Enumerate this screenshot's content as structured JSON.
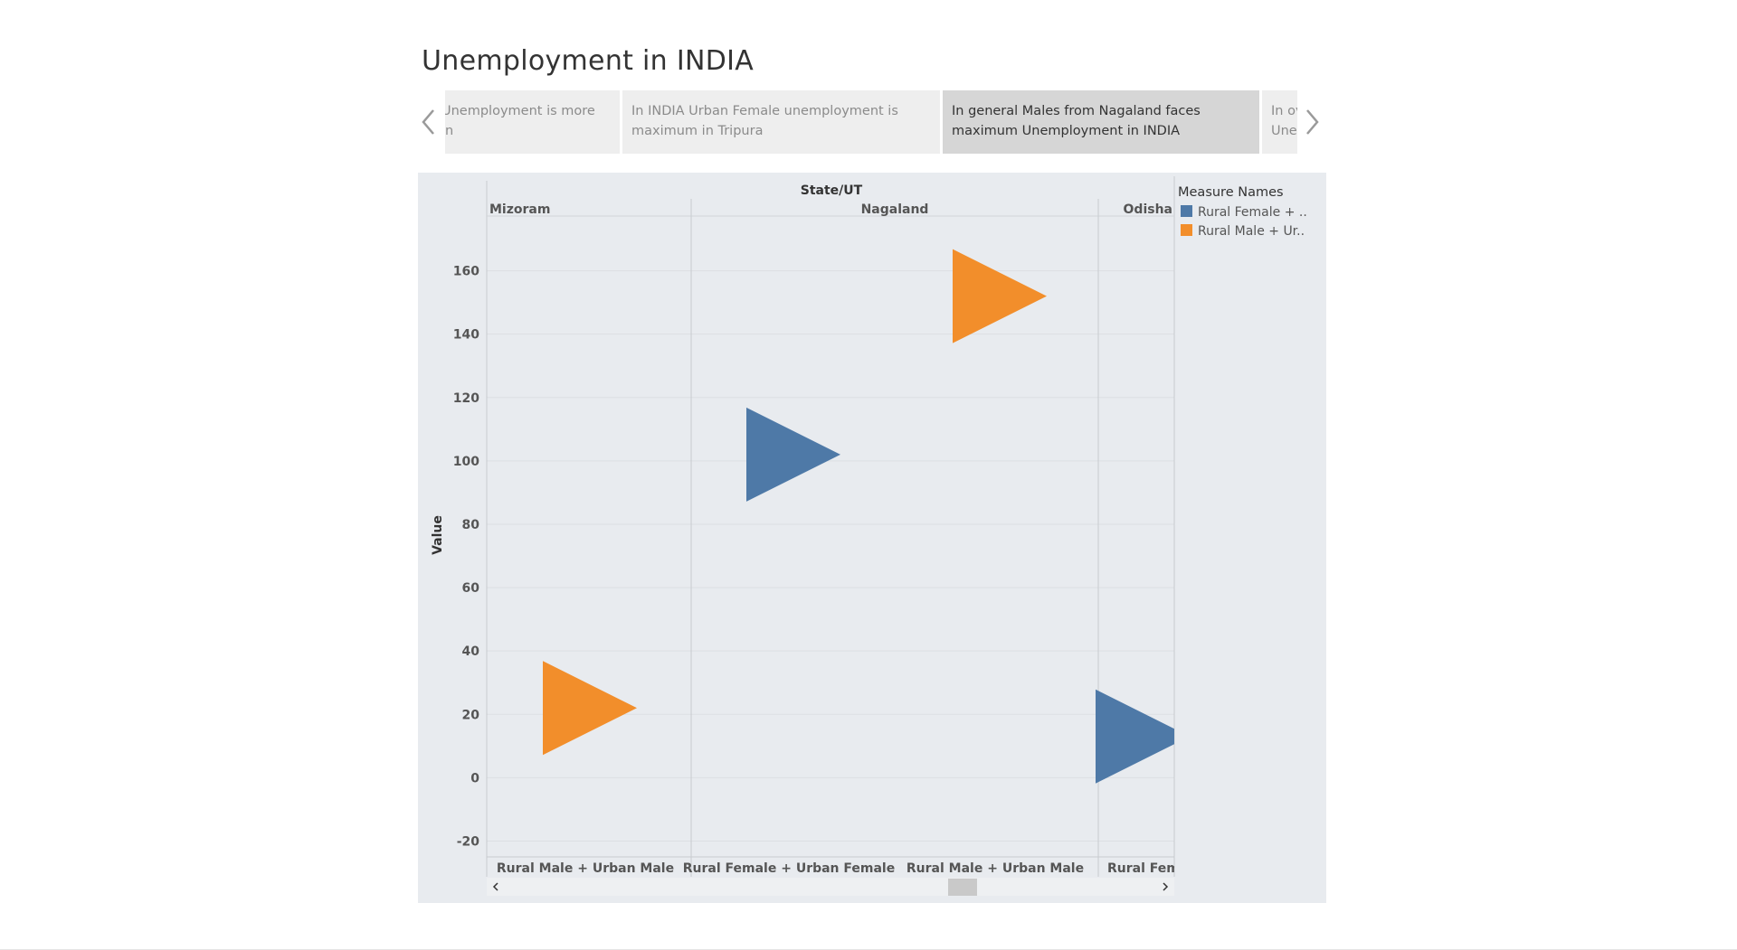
{
  "story": {
    "title": "Unemployment in INDIA",
    "story_points": [
      {
        "text": "Unemployment is more in",
        "active": false
      },
      {
        "text": "In INDIA Urban Female unemployment is maximum in Tripura",
        "active": false
      },
      {
        "text": "In general Males from Nagaland faces maximum Unemployment in INDIA",
        "active": true
      },
      {
        "text": "In ove Unem",
        "active": false
      }
    ],
    "prev_icon": "chevron-left-icon",
    "next_icon": "chevron-right-icon"
  },
  "chart_data": {
    "type": "scatter",
    "mark_shape": "triangle-right",
    "column_header_title": "State/UT",
    "column_headers": [
      "Mizoram",
      "Nagaland",
      "Odisha"
    ],
    "x_categories": [
      "Rural Male + Urban Male",
      "Rural Female + Urban Female",
      "Rural Male + Urban Male",
      "Rural Femal"
    ],
    "ylabel": "Value",
    "ylim": [
      -25,
      177
    ],
    "yticks": [
      -20,
      0,
      20,
      40,
      60,
      80,
      100,
      120,
      140,
      160
    ],
    "grid": true,
    "legend": {
      "title": "Measure Names",
      "position": "right",
      "entries": [
        {
          "label": "Rural Female + ..",
          "color": "#4e79a7"
        },
        {
          "label": "Rural Male + Ur..",
          "color": "#f28e2b"
        }
      ]
    },
    "points": [
      {
        "state": "Mizoram",
        "measure": "Rural Male + Urban Male",
        "value": 22,
        "color": "#f28e2b"
      },
      {
        "state": "Nagaland",
        "measure": "Rural Female + Urban Female",
        "value": 102,
        "color": "#4e79a7"
      },
      {
        "state": "Nagaland",
        "measure": "Rural Male + Urban Male",
        "value": 152,
        "color": "#f28e2b"
      },
      {
        "state": "Odisha",
        "measure": "Rural Female + Urban Female",
        "value": 13,
        "color": "#4e79a7"
      }
    ]
  },
  "scrollbar": {
    "left_icon": "chevron-left-icon",
    "right_icon": "chevron-right-icon"
  }
}
